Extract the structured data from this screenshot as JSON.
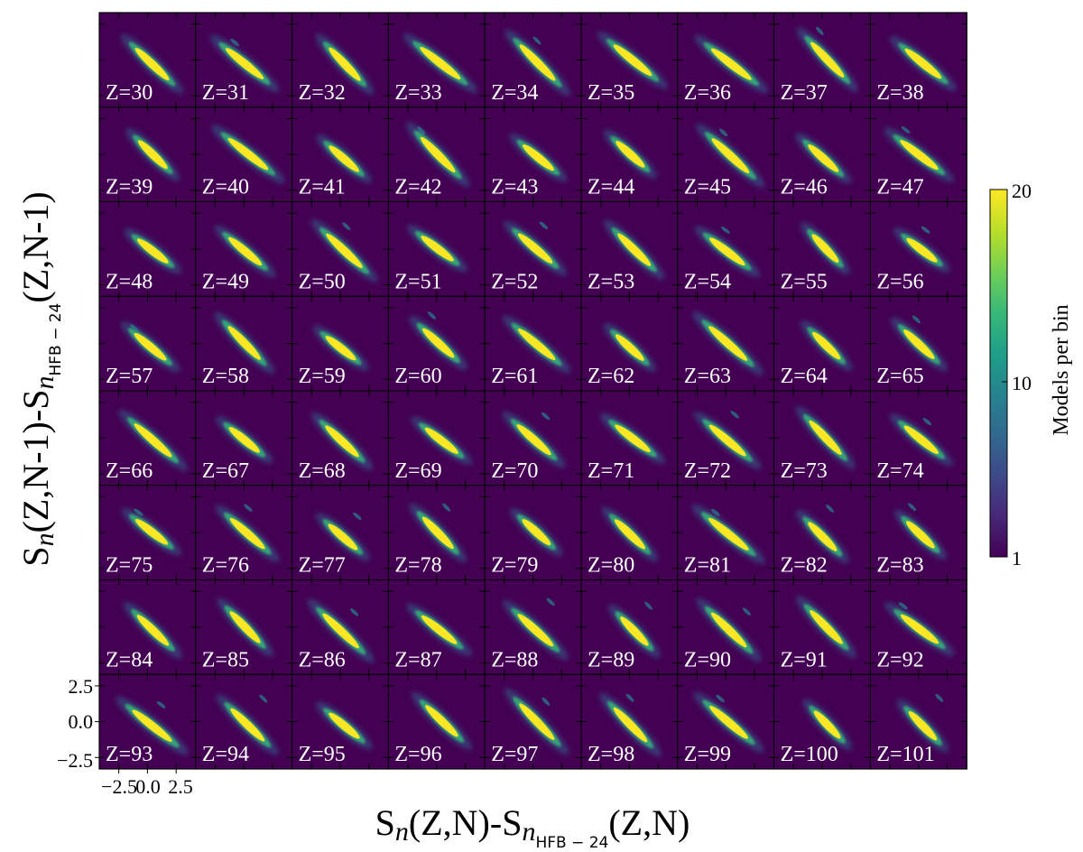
{
  "chart_data": {
    "type": "heatmap",
    "layout": {
      "rows": 8,
      "cols": 9,
      "shared_axes": true
    },
    "xlabel": {
      "base": "S",
      "sub1": "n",
      "mid": "(Z,N)-S",
      "sub2": "n",
      "sub3": "HFB − 24",
      "tail": "(Z,N)"
    },
    "ylabel": {
      "base": "S",
      "sub1": "n",
      "mid": "(Z,N-1)-S",
      "sub2": "n",
      "sub3": "HFB − 24",
      "tail": "(Z,N-1)"
    },
    "xlim": [
      -4.2,
      4.2
    ],
    "ylim": [
      -3.3,
      3.3
    ],
    "x_ticks": [
      -2.5,
      0.0,
      2.5
    ],
    "y_ticks": [
      -2.5,
      0.0,
      2.5
    ],
    "x_tick_labels": [
      "−2.5",
      "0.0",
      "2.5"
    ],
    "y_tick_labels": [
      "−2.5",
      "0.0",
      "2.5"
    ],
    "panel_labels": [
      "Z=30",
      "Z=31",
      "Z=32",
      "Z=33",
      "Z=34",
      "Z=35",
      "Z=36",
      "Z=37",
      "Z=38",
      "Z=39",
      "Z=40",
      "Z=41",
      "Z=42",
      "Z=43",
      "Z=44",
      "Z=45",
      "Z=46",
      "Z=47",
      "Z=48",
      "Z=49",
      "Z=50",
      "Z=51",
      "Z=52",
      "Z=53",
      "Z=54",
      "Z=55",
      "Z=56",
      "Z=57",
      "Z=58",
      "Z=59",
      "Z=60",
      "Z=61",
      "Z=62",
      "Z=63",
      "Z=64",
      "Z=65",
      "Z=66",
      "Z=67",
      "Z=68",
      "Z=69",
      "Z=70",
      "Z=71",
      "Z=72",
      "Z=73",
      "Z=74",
      "Z=75",
      "Z=76",
      "Z=77",
      "Z=78",
      "Z=79",
      "Z=80",
      "Z=81",
      "Z=82",
      "Z=83",
      "Z=84",
      "Z=85",
      "Z=86",
      "Z=87",
      "Z=88",
      "Z=89",
      "Z=90",
      "Z=91",
      "Z=92",
      "Z=93",
      "Z=94",
      "Z=95",
      "Z=96",
      "Z=97",
      "Z=98",
      "Z=99",
      "Z=100",
      "Z=101"
    ],
    "colorbar": {
      "label": "Models per bin",
      "min": 1,
      "max": 20,
      "ticks": [
        1,
        10,
        20
      ],
      "tick_labels": [
        "1",
        "10",
        "20"
      ],
      "colormap": "viridis"
    }
  },
  "colors": {
    "background": "#440154",
    "viridis": [
      "#440154",
      "#482878",
      "#3e4989",
      "#31688e",
      "#26828e",
      "#1f9e89",
      "#35b779",
      "#6ece58",
      "#b5de2b",
      "#fde725"
    ]
  }
}
